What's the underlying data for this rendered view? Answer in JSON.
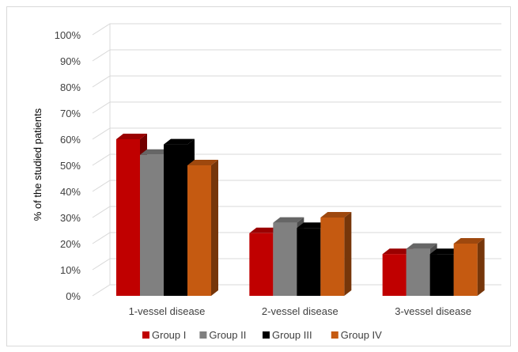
{
  "chart_data": {
    "type": "bar",
    "title": "",
    "xlabel": "",
    "ylabel": "% of the studied patients",
    "ylim": [
      0,
      100
    ],
    "yticks": [
      "0%",
      "10%",
      "20%",
      "30%",
      "40%",
      "50%",
      "60%",
      "70%",
      "80%",
      "90%",
      "100%"
    ],
    "categories": [
      "1-vessel disease",
      "2-vessel disease",
      "3-vessel disease"
    ],
    "series": [
      {
        "name": "Group I",
        "color": "#c00000",
        "values": [
          60,
          24,
          16
        ]
      },
      {
        "name": "Group II",
        "color": "#808080",
        "values": [
          54,
          28,
          18
        ]
      },
      {
        "name": "Group III",
        "color": "#000000",
        "values": [
          58,
          26,
          16
        ]
      },
      {
        "name": "Group IV",
        "color": "#c55a11",
        "values": [
          50,
          30,
          20
        ]
      }
    ],
    "grid": true,
    "legend": "bottom",
    "style": "3d-clustered-column"
  }
}
